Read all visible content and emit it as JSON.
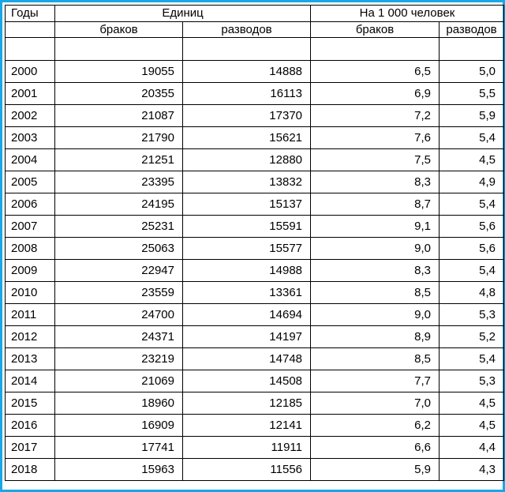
{
  "header": {
    "years": "Годы",
    "units": "Единиц",
    "per1000": "На 1 000 человек",
    "marriages": "браков",
    "divorces": "разводов"
  },
  "rows": [
    {
      "year": "2000",
      "marriages": "19055",
      "divorces": "14888",
      "marriages_rate": "6,5",
      "divorces_rate": "5,0"
    },
    {
      "year": "2001",
      "marriages": "20355",
      "divorces": "16113",
      "marriages_rate": "6,9",
      "divorces_rate": "5,5"
    },
    {
      "year": "2002",
      "marriages": "21087",
      "divorces": "17370",
      "marriages_rate": "7,2",
      "divorces_rate": "5,9"
    },
    {
      "year": "2003",
      "marriages": "21790",
      "divorces": "15621",
      "marriages_rate": "7,6",
      "divorces_rate": "5,4"
    },
    {
      "year": "2004",
      "marriages": "21251",
      "divorces": "12880",
      "marriages_rate": "7,5",
      "divorces_rate": "4,5"
    },
    {
      "year": "2005",
      "marriages": "23395",
      "divorces": "13832",
      "marriages_rate": "8,3",
      "divorces_rate": "4,9"
    },
    {
      "year": "2006",
      "marriages": "24195",
      "divorces": "15137",
      "marriages_rate": "8,7",
      "divorces_rate": "5,4"
    },
    {
      "year": "2007",
      "marriages": "25231",
      "divorces": "15591",
      "marriages_rate": "9,1",
      "divorces_rate": "5,6"
    },
    {
      "year": "2008",
      "marriages": "25063",
      "divorces": "15577",
      "marriages_rate": "9,0",
      "divorces_rate": "5,6"
    },
    {
      "year": "2009",
      "marriages": "22947",
      "divorces": "14988",
      "marriages_rate": "8,3",
      "divorces_rate": "5,4"
    },
    {
      "year": "2010",
      "marriages": "23559",
      "divorces": "13361",
      "marriages_rate": "8,5",
      "divorces_rate": "4,8"
    },
    {
      "year": "2011",
      "marriages": "24700",
      "divorces": "14694",
      "marriages_rate": "9,0",
      "divorces_rate": "5,3"
    },
    {
      "year": "2012",
      "marriages": "24371",
      "divorces": "14197",
      "marriages_rate": "8,9",
      "divorces_rate": "5,2"
    },
    {
      "year": "2013",
      "marriages": "23219",
      "divorces": "14748",
      "marriages_rate": "8,5",
      "divorces_rate": "5,4"
    },
    {
      "year": "2014",
      "marriages": "21069",
      "divorces": "14508",
      "marriages_rate": "7,7",
      "divorces_rate": "5,3"
    },
    {
      "year": "2015",
      "marriages": "18960",
      "divorces": "12185",
      "marriages_rate": "7,0",
      "divorces_rate": "4,5"
    },
    {
      "year": "2016",
      "marriages": "16909",
      "divorces": "12141",
      "marriages_rate": "6,2",
      "divorces_rate": "4,5"
    },
    {
      "year": "2017",
      "marriages": "17741",
      "divorces": "11911",
      "marriages_rate": "6,6",
      "divorces_rate": "4,4"
    },
    {
      "year": "2018",
      "marriages": "15963",
      "divorces": "11556",
      "marriages_rate": "5,9",
      "divorces_rate": "4,3"
    }
  ],
  "colors": {
    "frame": "#19a7e6",
    "grid": "#000000"
  }
}
